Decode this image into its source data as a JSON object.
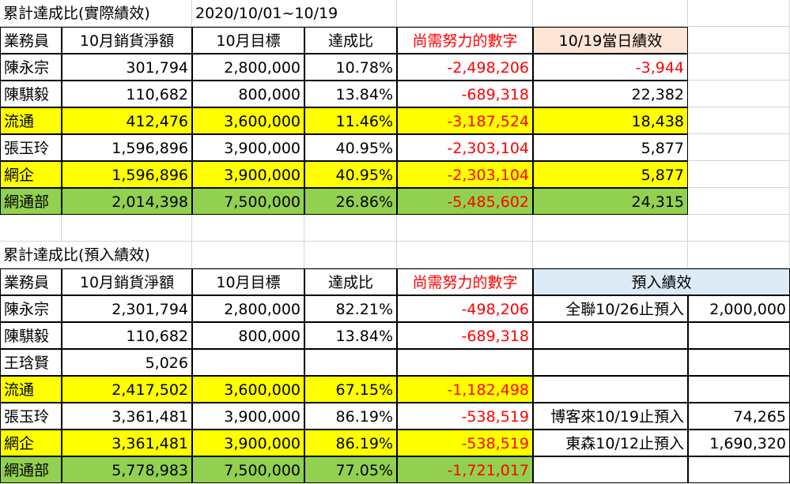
{
  "section1": {
    "title": "累計達成比(實際績效)",
    "date_range": "2020/10/01~10/19",
    "headers": [
      "業務員",
      "10月銷貨淨額",
      "10月目標",
      "達成比",
      "尚需努力的數字",
      "10/19當日績效"
    ],
    "rows": [
      {
        "name": "陳永宗",
        "sales": "301,794",
        "target": "2,800,000",
        "ratio": "10.78%",
        "remaining": "-2,498,206",
        "daily": "-3,944"
      },
      {
        "name": "陳騏毅",
        "sales": "110,682",
        "target": "800,000",
        "ratio": "13.84%",
        "remaining": "-689,318",
        "daily": "22,382"
      },
      {
        "name": "流通",
        "sales": "412,476",
        "target": "3,600,000",
        "ratio": "11.46%",
        "remaining": "-3,187,524",
        "daily": "18,438"
      },
      {
        "name": "張玉玲",
        "sales": "1,596,896",
        "target": "3,900,000",
        "ratio": "40.95%",
        "remaining": "-2,303,104",
        "daily": "5,877"
      },
      {
        "name": "網企",
        "sales": "1,596,896",
        "target": "3,900,000",
        "ratio": "40.95%",
        "remaining": "-2,303,104",
        "daily": "5,877"
      },
      {
        "name": "網通部",
        "sales": "2,014,398",
        "target": "7,500,000",
        "ratio": "26.86%",
        "remaining": "-5,485,602",
        "daily": "24,315"
      }
    ]
  },
  "section2": {
    "title": "累計達成比(預入績效)",
    "headers": [
      "業務員",
      "10月銷貨淨額",
      "10月目標",
      "達成比",
      "尚需努力的數字",
      "預入績效"
    ],
    "rows": [
      {
        "name": "陳永宗",
        "sales": "2,301,794",
        "target": "2,800,000",
        "ratio": "82.21%",
        "remaining": "-498,206",
        "pre_label": "全聯10/26止預入",
        "pre_value": "2,000,000"
      },
      {
        "name": "陳騏毅",
        "sales": "110,682",
        "target": "800,000",
        "ratio": "13.84%",
        "remaining": "-689,318",
        "pre_label": "",
        "pre_value": ""
      },
      {
        "name": "王琀賢",
        "sales": "5,026",
        "target": "",
        "ratio": "",
        "remaining": "",
        "pre_label": "",
        "pre_value": ""
      },
      {
        "name": "流通",
        "sales": "2,417,502",
        "target": "3,600,000",
        "ratio": "67.15%",
        "remaining": "-1,182,498",
        "pre_label": "",
        "pre_value": ""
      },
      {
        "name": "張玉玲",
        "sales": "3,361,481",
        "target": "3,900,000",
        "ratio": "86.19%",
        "remaining": "-538,519",
        "pre_label": "博客來10/19止預入",
        "pre_value": "74,265"
      },
      {
        "name": "網企",
        "sales": "3,361,481",
        "target": "3,900,000",
        "ratio": "86.19%",
        "remaining": "-538,519",
        "pre_label": "東森10/12止預入",
        "pre_value": "1,690,320"
      },
      {
        "name": "網通部",
        "sales": "5,778,983",
        "target": "7,500,000",
        "ratio": "77.05%",
        "remaining": "-1,721,017",
        "pre_label": "",
        "pre_value": ""
      }
    ]
  },
  "colors": {
    "yellow": "#ffff00",
    "green": "#92d050",
    "peach": "#fce4d6",
    "blue": "#ddebf7",
    "red": "#ff0000"
  }
}
